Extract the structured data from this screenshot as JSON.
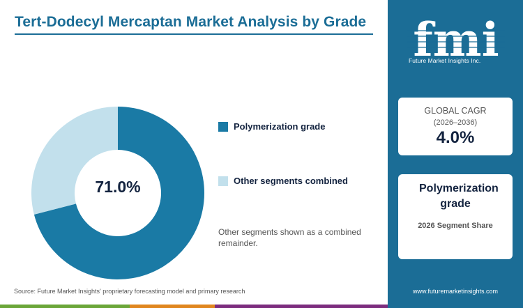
{
  "title": "Tert-Dodecyl Mercaptan Market Analysis by Grade",
  "chart_data": {
    "type": "pie",
    "style": "donut",
    "categories": [
      "Polymerization grade",
      "Other segments combined"
    ],
    "values": [
      71.0,
      29.0
    ],
    "colors": [
      "#1a7aa5",
      "#c2e0ec"
    ],
    "center_label": "71.0%"
  },
  "legend": {
    "items": [
      {
        "label": "Polymerization grade",
        "color": "#1a7aa5"
      },
      {
        "label": "Other segments combined",
        "color": "#c2e0ec"
      }
    ],
    "note": "Other segments shown as a combined remainder."
  },
  "source": "Source: Future Market Insights' proprietary forecasting model and primary research",
  "sidebar": {
    "logo_text": "fmi",
    "logo_subtitle": "Future Market Insights Inc.",
    "cagr_card": {
      "label": "GLOBAL CAGR",
      "years": "(2026–2036)",
      "value": "4.0%"
    },
    "segment_card": {
      "segment": "Polymerization grade",
      "share_label": "2026 Segment Share"
    },
    "url": "www.futuremarketinsights.com"
  },
  "colors": {
    "brand": "#1b6d96",
    "dark_text": "#13233f",
    "bottom_bar": [
      "#6ba639",
      "#e0861f",
      "#7c2d7e"
    ]
  }
}
